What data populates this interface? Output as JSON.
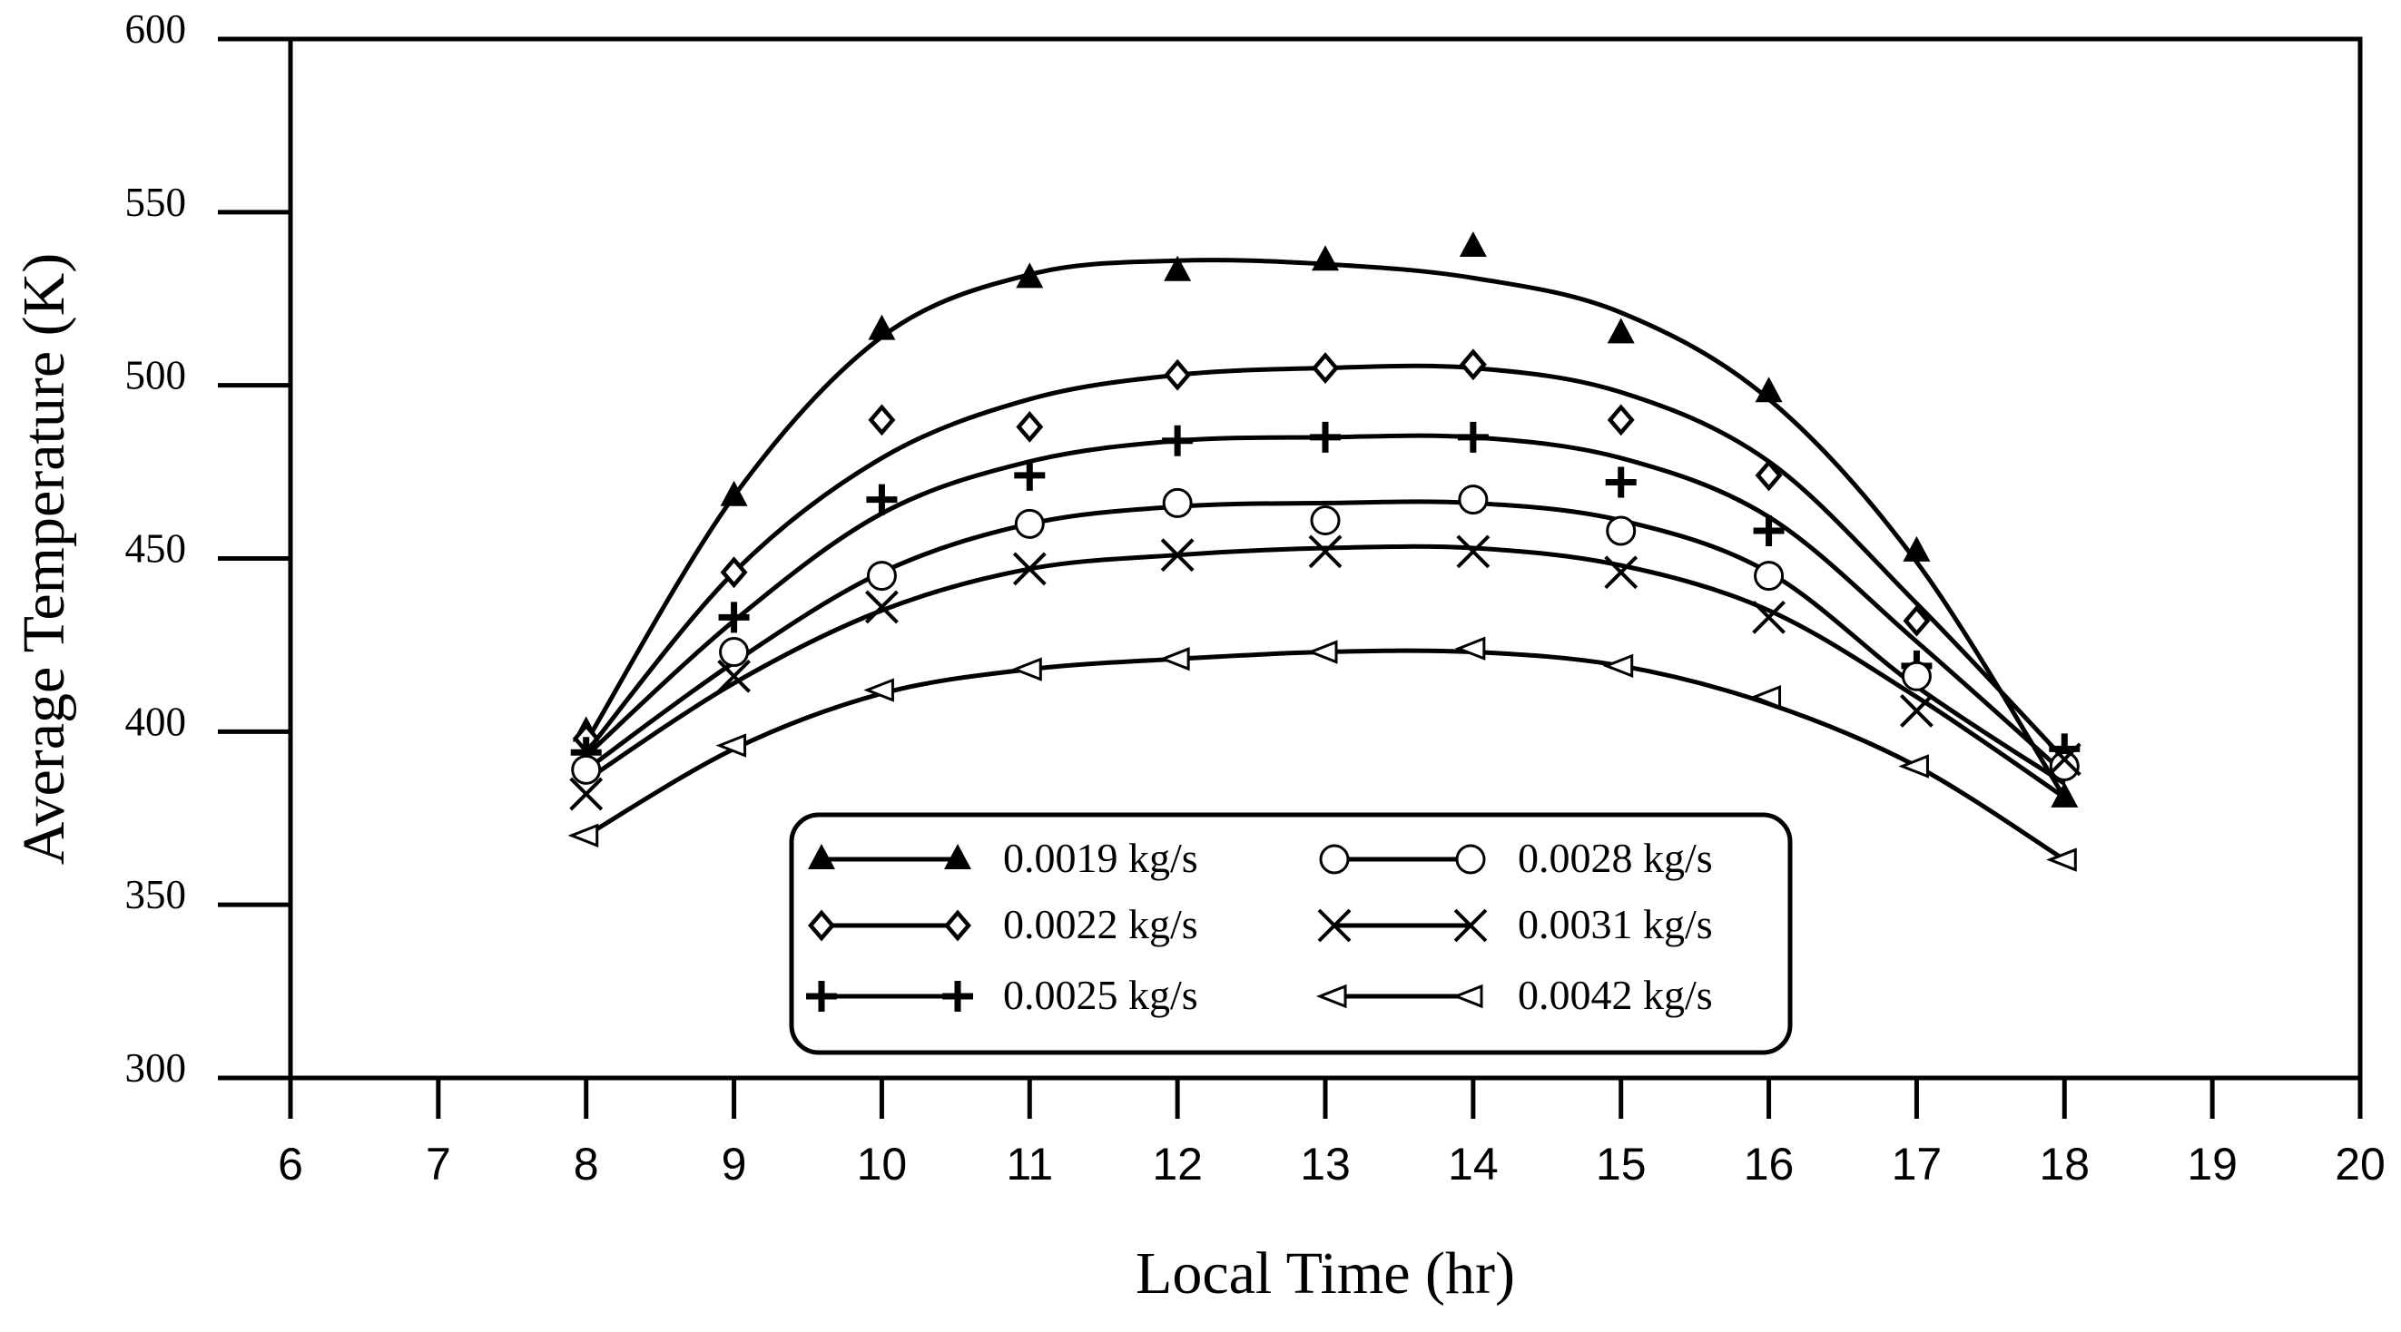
{
  "chart_data": {
    "type": "scatter",
    "xlabel": "Local Time (hr)",
    "ylabel": "Average Temperature (K)",
    "xlim": [
      6,
      20
    ],
    "ylim": [
      300,
      600
    ],
    "x_ticks": [
      "6",
      "7",
      "8",
      "9",
      "10",
      "11",
      "12",
      "13",
      "14",
      "15",
      "16",
      "17",
      "18",
      "19",
      "20"
    ],
    "y_ticks": [
      "300",
      "350",
      "400",
      "450",
      "500",
      "550",
      "600"
    ],
    "grid": false,
    "legend_position": "bottom-center",
    "x": [
      8,
      9,
      10,
      11,
      12,
      13,
      14,
      15,
      16,
      17,
      18
    ],
    "series": [
      {
        "name": "0.0019 kg/s",
        "marker": "filled-triangle-up",
        "values": [
          400,
          468,
          516,
          531,
          533,
          536,
          540,
          515,
          498,
          452,
          381
        ],
        "fit": [
          397,
          468,
          514,
          532,
          536,
          535,
          531,
          521,
          496,
          449,
          381
        ]
      },
      {
        "name": "0.0022 kg/s",
        "marker": "diamond",
        "values": [
          398,
          446,
          490,
          488,
          503,
          505,
          506,
          490,
          474,
          432,
          392
        ],
        "fit": [
          394,
          446,
          479,
          496,
          503,
          505,
          505,
          498,
          478,
          437,
          392
        ]
      },
      {
        "name": "0.0025 kg/s",
        "marker": "plus",
        "values": [
          394,
          433,
          467,
          474,
          484,
          485,
          485,
          472,
          458,
          419,
          395
        ],
        "fit": [
          393,
          432,
          463,
          478,
          484,
          485,
          485,
          479,
          462,
          426,
          388
        ]
      },
      {
        "name": "0.0028 kg/s",
        "marker": "open-circle",
        "values": [
          389,
          423,
          445,
          460,
          466,
          461,
          467,
          458,
          445,
          416,
          390
        ],
        "fit": [
          389,
          420,
          446,
          460,
          465,
          466,
          466,
          461,
          446,
          413,
          385
        ]
      },
      {
        "name": "0.0031 kg/s",
        "marker": "x",
        "values": [
          382,
          416,
          436,
          447,
          451,
          452,
          452,
          446,
          433,
          406,
          392
        ],
        "fit": [
          386,
          414,
          435,
          447,
          451,
          453,
          453,
          448,
          435,
          410,
          381
        ]
      },
      {
        "name": "0.0042 kg/s",
        "marker": "open-triangle-left",
        "values": [
          370,
          396,
          412,
          418,
          421,
          423,
          424,
          419,
          410,
          390,
          363
        ],
        "fit": [
          370,
          395,
          411,
          418,
          421,
          423,
          423,
          419,
          408,
          390,
          363
        ]
      }
    ]
  }
}
